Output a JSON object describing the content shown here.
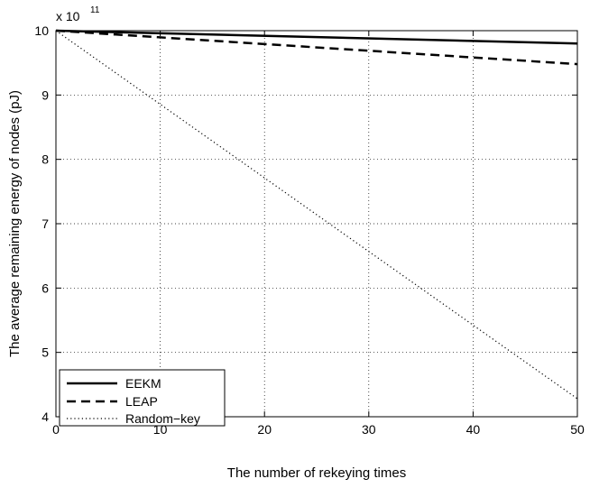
{
  "chart_data": {
    "type": "line",
    "xlabel": "The number of rekeying times",
    "ylabel": "The average remaining energy of nodes (pJ)",
    "y_multiplier": {
      "base": "x 10",
      "exponent": "11"
    },
    "xlim": [
      0,
      50
    ],
    "ylim": [
      4,
      10
    ],
    "x_ticks": [
      0,
      10,
      20,
      30,
      40,
      50
    ],
    "y_ticks": [
      4,
      5,
      6,
      7,
      8,
      9,
      10
    ],
    "grid": true,
    "legend_position": "bottom-left",
    "x": [
      0,
      50
    ],
    "series": [
      {
        "name": "EEKM",
        "values": [
          10.0,
          9.8
        ],
        "style": "solid",
        "color": "#000000"
      },
      {
        "name": "LEAP",
        "values": [
          10.0,
          9.48
        ],
        "style": "dashed",
        "color": "#000000"
      },
      {
        "name": "Random−key",
        "values": [
          10.0,
          4.28
        ],
        "style": "dotted",
        "color": "#000000"
      }
    ]
  }
}
